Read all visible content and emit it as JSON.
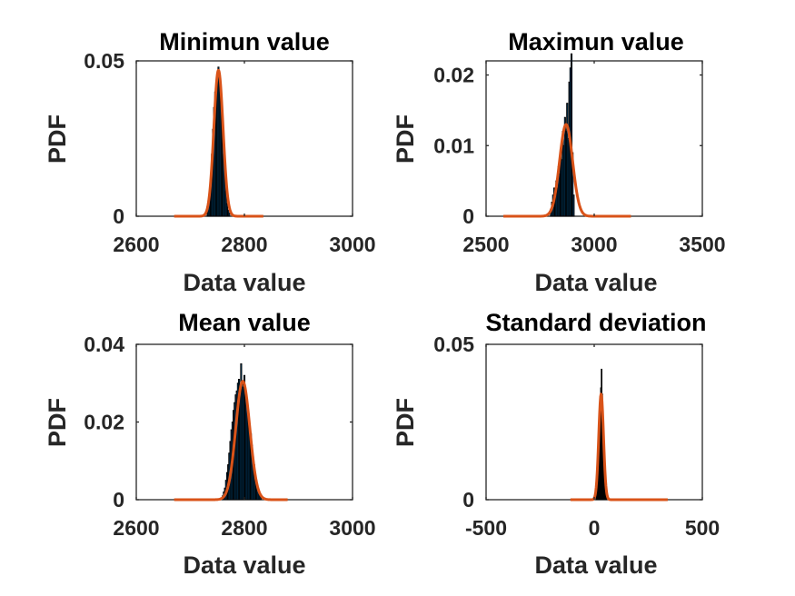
{
  "colors": {
    "histogram_bar": "#0072BD",
    "histogram_edge": "#000000",
    "fit_curve": "#D95319",
    "axes": "#262626"
  },
  "chart_data": [
    {
      "type": "bar",
      "subtype": "histogram-with-normal-fit",
      "title": "Minimun value",
      "xlabel": "Data value",
      "ylabel": "PDF",
      "xlim": [
        2600,
        3000
      ],
      "ylim": [
        0,
        0.05
      ],
      "xticks": [
        "2600",
        "2800",
        "3000"
      ],
      "yticks": [
        "0",
        "0.05"
      ],
      "fit": {
        "mean": 2752,
        "sd": 8.5,
        "peak": 0.047,
        "range": [
          2670,
          2835
        ]
      },
      "histogram": {
        "bin_width": 2,
        "x": [
          2732,
          2734,
          2736,
          2738,
          2740,
          2742,
          2744,
          2746,
          2748,
          2750,
          2752,
          2754,
          2756,
          2758,
          2760,
          2762,
          2764,
          2766,
          2768,
          2770,
          2772
        ],
        "values": [
          0.002,
          0.004,
          0.008,
          0.013,
          0.02,
          0.028,
          0.035,
          0.04,
          0.043,
          0.045,
          0.048,
          0.046,
          0.04,
          0.034,
          0.028,
          0.02,
          0.013,
          0.008,
          0.004,
          0.002,
          0.001
        ]
      }
    },
    {
      "type": "bar",
      "subtype": "histogram-with-normal-fit",
      "title": "Maximun value",
      "xlabel": "Data value",
      "ylabel": "PDF",
      "xlim": [
        2500,
        3500
      ],
      "ylim": [
        0,
        0.022
      ],
      "xticks": [
        "2500",
        "3000",
        "3500"
      ],
      "yticks": [
        "0",
        "0.01",
        "0.02"
      ],
      "fit": {
        "mean": 2870,
        "sd": 30,
        "peak": 0.013,
        "range": [
          2580,
          3170
        ]
      },
      "histogram": {
        "bin_width": 5,
        "x": [
          2800,
          2805,
          2810,
          2815,
          2820,
          2825,
          2830,
          2835,
          2840,
          2845,
          2850,
          2855,
          2860,
          2865,
          2870,
          2875,
          2880,
          2885,
          2890,
          2895,
          2900,
          2905
        ],
        "values": [
          0.001,
          0.002,
          0.003,
          0.004,
          0.003,
          0.005,
          0.004,
          0.007,
          0.006,
          0.009,
          0.008,
          0.012,
          0.01,
          0.014,
          0.012,
          0.016,
          0.011,
          0.019,
          0.021,
          0.023,
          0.009,
          0.003
        ]
      }
    },
    {
      "type": "bar",
      "subtype": "histogram-with-normal-fit",
      "title": "Mean value",
      "xlabel": "Data value",
      "ylabel": "PDF",
      "xlim": [
        2600,
        3000
      ],
      "ylim": [
        0,
        0.04
      ],
      "xticks": [
        "2600",
        "2800",
        "3000"
      ],
      "yticks": [
        "0",
        "0.02",
        "0.04"
      ],
      "fit": {
        "mean": 2797,
        "sd": 13,
        "peak": 0.0305,
        "range": [
          2670,
          2880
        ]
      },
      "histogram": {
        "bin_width": 2,
        "x": [
          2760,
          2762,
          2764,
          2766,
          2768,
          2770,
          2772,
          2774,
          2776,
          2778,
          2780,
          2782,
          2784,
          2786,
          2788,
          2790,
          2792,
          2794,
          2796,
          2798,
          2800,
          2802,
          2804,
          2806,
          2808,
          2810,
          2812,
          2814,
          2816,
          2818,
          2820,
          2822,
          2824,
          2826,
          2828,
          2830
        ],
        "values": [
          0.001,
          0.002,
          0.003,
          0.005,
          0.007,
          0.009,
          0.012,
          0.015,
          0.018,
          0.02,
          0.023,
          0.025,
          0.027,
          0.028,
          0.03,
          0.031,
          0.029,
          0.035,
          0.03,
          0.029,
          0.032,
          0.027,
          0.026,
          0.024,
          0.022,
          0.019,
          0.017,
          0.014,
          0.011,
          0.009,
          0.007,
          0.005,
          0.003,
          0.002,
          0.0015,
          0.001
        ]
      }
    },
    {
      "type": "bar",
      "subtype": "histogram-with-normal-fit",
      "title": "Standard deviation",
      "xlabel": "Data value",
      "ylabel": "PDF",
      "xlim": [
        -500,
        500
      ],
      "ylim": [
        0,
        0.05
      ],
      "xticks": [
        "-500",
        "0",
        "500"
      ],
      "yticks": [
        "0",
        "0.05"
      ],
      "fit": {
        "mean": 32,
        "sd": 11,
        "peak": 0.034,
        "range": [
          -110,
          340
        ]
      },
      "histogram": {
        "bin_width": 3,
        "x": [
          10,
          13,
          16,
          19,
          22,
          25,
          28,
          31,
          34,
          37,
          40,
          43,
          46,
          49,
          52,
          55
        ],
        "values": [
          0.002,
          0.004,
          0.008,
          0.013,
          0.02,
          0.027,
          0.033,
          0.036,
          0.042,
          0.034,
          0.026,
          0.018,
          0.011,
          0.006,
          0.003,
          0.001
        ]
      }
    }
  ]
}
